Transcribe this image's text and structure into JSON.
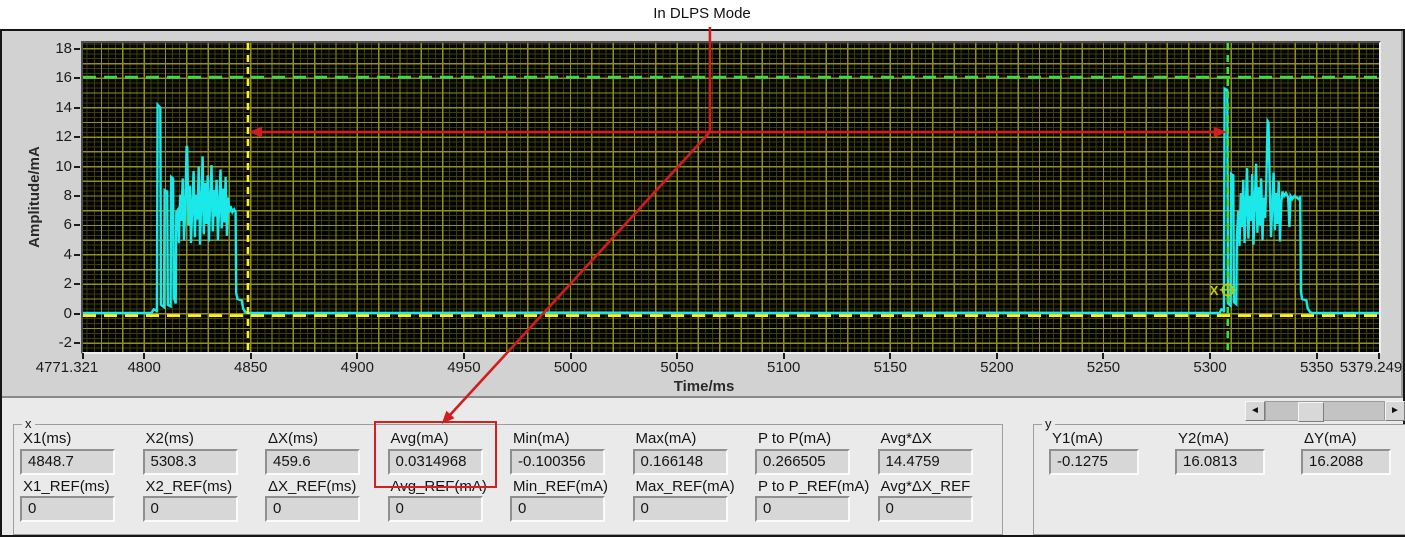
{
  "annotation": {
    "label": "In DLPS Mode",
    "color": "#d01d1d",
    "callout_x_ms": 5065.4,
    "span_arrow": {
      "from_x_ms": 4848.7,
      "to_x_ms": 5308.3,
      "y_ma": 12.35
    }
  },
  "chart_data": {
    "type": "line",
    "title": "",
    "xlabel": "Time/ms",
    "ylabel": "Amplitude/mA",
    "xlim": [
      4771.321,
      5379.249
    ],
    "ylim": [
      -2.6,
      18.4
    ],
    "x_ticks": [
      {
        "t": 4771.321,
        "label": "4771.321",
        "dx": -16
      },
      {
        "t": 4800,
        "label": "4800"
      },
      {
        "t": 4850,
        "label": "4850"
      },
      {
        "t": 4900,
        "label": "4900"
      },
      {
        "t": 4950,
        "label": "4950"
      },
      {
        "t": 5000,
        "label": "5000"
      },
      {
        "t": 5050,
        "label": "5050"
      },
      {
        "t": 5100,
        "label": "5100"
      },
      {
        "t": 5150,
        "label": "5150"
      },
      {
        "t": 5200,
        "label": "5200"
      },
      {
        "t": 5250,
        "label": "5250"
      },
      {
        "t": 5300,
        "label": "5300"
      },
      {
        "t": 5350,
        "label": "5350"
      },
      {
        "t": 5379.249,
        "label": "5379.249",
        "dx": -8
      }
    ],
    "y_ticks": [
      {
        "v": 18,
        "label": "18"
      },
      {
        "v": 16,
        "label": "16"
      },
      {
        "v": 14,
        "label": "14"
      },
      {
        "v": 12,
        "label": "12"
      },
      {
        "v": 10,
        "label": "10"
      },
      {
        "v": 8,
        "label": "8"
      },
      {
        "v": 6,
        "label": "6"
      },
      {
        "v": 4,
        "label": "4"
      },
      {
        "v": 2,
        "label": "2"
      },
      {
        "v": 0,
        "label": "0"
      },
      {
        "v": -2,
        "label": "-2"
      }
    ],
    "grid": {
      "on": true,
      "x_major_step": 10,
      "x_minor_step": 3.3333,
      "y_major_step": 1,
      "y_minor_step": 0.3333,
      "major_color": "#90901a",
      "minor_color": "#3d3d0a",
      "bg": "#040404"
    },
    "series": [
      {
        "name": "current-waveform",
        "color": "#1be9e9",
        "points": [
          [
            4771.3,
            0.05
          ],
          [
            4803.5,
            0.05
          ],
          [
            4804.5,
            0.3
          ],
          [
            4805.5,
            0.25
          ],
          [
            4806,
            0.1
          ],
          [
            4806.3,
            14.2
          ],
          [
            4807.6,
            14.0
          ],
          [
            4807.9,
            0.6
          ],
          [
            4809.3,
            0.45
          ],
          [
            4809.6,
            8.4
          ],
          [
            4810.8,
            8.3
          ],
          [
            4811.1,
            0.6
          ],
          [
            4812.4,
            0.5
          ],
          [
            4812.7,
            9.3
          ],
          [
            4813.6,
            9.2
          ],
          [
            4813.9,
            1.1
          ],
          [
            4814.8,
            0.7
          ],
          [
            4815.1,
            6.9
          ],
          [
            4816,
            7.1
          ],
          [
            4816.3,
            4.8
          ],
          [
            4816.9,
            8.1
          ],
          [
            4817.5,
            6.3
          ],
          [
            4818.1,
            9.2
          ],
          [
            4818.7,
            5.0
          ],
          [
            4819.3,
            7.2
          ],
          [
            4819.9,
            11.4
          ],
          [
            4820.2,
            11.3
          ],
          [
            4820.8,
            6.0
          ],
          [
            4821.4,
            8.7
          ],
          [
            4822,
            4.8
          ],
          [
            4822.6,
            7.4
          ],
          [
            4823.2,
            9.7
          ],
          [
            4823.8,
            5.2
          ],
          [
            4824.4,
            8.1
          ],
          [
            4825,
            6.4
          ],
          [
            4825.6,
            10.0
          ],
          [
            4826.2,
            4.7
          ],
          [
            4826.8,
            7.6
          ],
          [
            4827.4,
            10.7
          ],
          [
            4828,
            5.4
          ],
          [
            4828.6,
            8.9
          ],
          [
            4829.2,
            6.1
          ],
          [
            4829.8,
            9.4
          ],
          [
            4830.4,
            4.9
          ],
          [
            4831,
            7.8
          ],
          [
            4831.6,
            10.1
          ],
          [
            4832.2,
            5.6
          ],
          [
            4832.8,
            8.4
          ],
          [
            4833.4,
            6.6
          ],
          [
            4834,
            9.1
          ],
          [
            4834.6,
            5.0
          ],
          [
            4835.2,
            7.3
          ],
          [
            4835.8,
            9.8
          ],
          [
            4836.4,
            5.8
          ],
          [
            4837,
            8.5
          ],
          [
            4837.6,
            6.2
          ],
          [
            4838.2,
            9.3
          ],
          [
            4838.8,
            5.3
          ],
          [
            4839.4,
            7.9
          ],
          [
            4840,
            6.9
          ],
          [
            4840.6,
            7.3
          ],
          [
            4841.4,
            6.9
          ],
          [
            4842.2,
            7.1
          ],
          [
            4842.9,
            6.9
          ],
          [
            4843.2,
            1.4
          ],
          [
            4843.8,
            1.0
          ],
          [
            4845.8,
            0.9
          ],
          [
            4846.4,
            0.35
          ],
          [
            4847.5,
            0.12
          ],
          [
            4848.5,
            0.05
          ],
          [
            4900,
            0.05
          ],
          [
            5000,
            0.08
          ],
          [
            5100,
            0.05
          ],
          [
            5200,
            0.07
          ],
          [
            5300,
            0.05
          ],
          [
            5304.5,
            0.05
          ],
          [
            5305.3,
            0.3
          ],
          [
            5306.2,
            0.25
          ],
          [
            5306.5,
            0.1
          ],
          [
            5306.8,
            15.3
          ],
          [
            5308.1,
            15.2
          ],
          [
            5308.4,
            0.7
          ],
          [
            5309.6,
            0.55
          ],
          [
            5309.9,
            9.5
          ],
          [
            5310.9,
            9.4
          ],
          [
            5311.2,
            0.8
          ],
          [
            5312.3,
            0.65
          ],
          [
            5312.6,
            5.2
          ],
          [
            5313.2,
            7.0
          ],
          [
            5313.8,
            4.6
          ],
          [
            5314.4,
            8.2
          ],
          [
            5315,
            5.9
          ],
          [
            5315.6,
            9.1
          ],
          [
            5316.2,
            4.8
          ],
          [
            5316.8,
            7.5
          ],
          [
            5317.4,
            9.9
          ],
          [
            5318,
            5.1
          ],
          [
            5318.6,
            8.0
          ],
          [
            5319.2,
            6.3
          ],
          [
            5319.8,
            9.5
          ],
          [
            5320.4,
            4.7
          ],
          [
            5321,
            7.7
          ],
          [
            5321.6,
            10.2
          ],
          [
            5322.2,
            5.5
          ],
          [
            5322.8,
            8.6
          ],
          [
            5323.4,
            6.0
          ],
          [
            5324,
            9.2
          ],
          [
            5324.6,
            5.0
          ],
          [
            5325.2,
            7.9
          ],
          [
            5325.8,
            6.5
          ],
          [
            5326.4,
            8.8
          ],
          [
            5327,
            13.1
          ],
          [
            5327.4,
            13.0
          ],
          [
            5328,
            8.9
          ],
          [
            5328.6,
            5.2
          ],
          [
            5329.2,
            7.4
          ],
          [
            5329.8,
            9.6
          ],
          [
            5330.4,
            5.7
          ],
          [
            5331,
            8.2
          ],
          [
            5331.6,
            6.1
          ],
          [
            5332.2,
            9.0
          ],
          [
            5332.8,
            4.9
          ],
          [
            5333.4,
            7.6
          ],
          [
            5334,
            8.3
          ],
          [
            5334.8,
            8.0
          ],
          [
            5335.6,
            8.2
          ],
          [
            5336.6,
            7.9
          ],
          [
            5337.2,
            5.9
          ],
          [
            5337.8,
            8.0
          ],
          [
            5338.6,
            7.8
          ],
          [
            5339.6,
            8.0
          ],
          [
            5340.6,
            7.9
          ],
          [
            5341.6,
            7.8
          ],
          [
            5342.3,
            7.9
          ],
          [
            5342.6,
            1.5
          ],
          [
            5343.2,
            1.0
          ],
          [
            5345.2,
            0.9
          ],
          [
            5345.8,
            0.35
          ],
          [
            5347,
            0.1
          ],
          [
            5348,
            0.05
          ],
          [
            5360,
            0.05
          ],
          [
            5379.2,
            0.05
          ]
        ]
      }
    ],
    "cursors": [
      {
        "name": "cursor-1",
        "color": "#ffee22",
        "x": 4848.7,
        "y": -0.1275
      },
      {
        "name": "cursor-2",
        "color": "#3bdc3b",
        "x": 5308.3,
        "y": 16.0813,
        "marker": {
          "x": 5308.3,
          "y": 1.62,
          "label": "X",
          "color": "#c3cc08"
        }
      }
    ]
  },
  "measure_panel": {
    "x_group": {
      "label": "x",
      "columns": [
        {
          "label": "X1(ms)",
          "value": "4848.7",
          "ref_label": "X1_REF(ms)",
          "ref_value": "0",
          "highlight": false
        },
        {
          "label": "X2(ms)",
          "value": "5308.3",
          "ref_label": "X2_REF(ms)",
          "ref_value": "0",
          "highlight": false
        },
        {
          "label": "ΔX(ms)",
          "value": "459.6",
          "ref_label": "ΔX_REF(ms)",
          "ref_value": "0",
          "highlight": false
        },
        {
          "label": "Avg(mA)",
          "value": "0.0314968",
          "ref_label": "Avg_REF(mA)",
          "ref_value": "0",
          "highlight": true
        },
        {
          "label": "Min(mA)",
          "value": "-0.100356",
          "ref_label": "Min_REF(mA)",
          "ref_value": "0",
          "highlight": false
        },
        {
          "label": "Max(mA)",
          "value": "0.166148",
          "ref_label": "Max_REF(mA)",
          "ref_value": "0",
          "highlight": false
        },
        {
          "label": "P to P(mA)",
          "value": "0.266505",
          "ref_label": "P to P_REF(mA)",
          "ref_value": "0",
          "highlight": false
        },
        {
          "label": "Avg*ΔX",
          "value": "14.4759",
          "ref_label": "Avg*ΔX_REF",
          "ref_value": "0",
          "highlight": false
        }
      ]
    },
    "y_group": {
      "label": "y",
      "columns": [
        {
          "label": "Y1(mA)",
          "value": "-0.1275"
        },
        {
          "label": "Y2(mA)",
          "value": "16.0813"
        },
        {
          "label": "ΔY(mA)",
          "value": "16.2088"
        }
      ]
    }
  },
  "scrollbar": {
    "left_icon": "◄",
    "right_icon": "►"
  }
}
